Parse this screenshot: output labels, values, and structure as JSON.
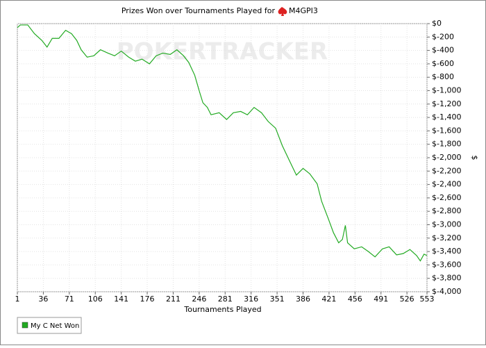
{
  "chart_data": {
    "type": "line",
    "title": "Prizes Won over Tournaments Played for",
    "player": "M4GPI3",
    "watermark": "POKERTRACKER",
    "x_label": "Tournaments Played",
    "y_label": "$",
    "x": [
      1,
      5,
      15,
      24,
      34,
      41,
      48,
      57,
      66,
      74,
      81,
      87,
      95,
      104,
      113,
      123,
      132,
      141,
      151,
      160,
      169,
      179,
      188,
      197,
      207,
      216,
      225,
      232,
      240,
      246,
      251,
      257,
      262,
      273,
      283,
      292,
      302,
      311,
      320,
      330,
      339,
      349,
      358,
      367,
      377,
      386,
      395,
      405,
      411,
      420,
      427,
      434,
      439,
      443,
      446,
      455,
      465,
      474,
      483,
      493,
      502,
      512,
      521,
      530,
      539,
      544,
      549,
      553
    ],
    "series": [
      {
        "name": "My C Net Won",
        "color": "#22aa22",
        "values": [
          -60,
          -20,
          -20,
          -150,
          -250,
          -350,
          -220,
          -220,
          -100,
          -150,
          -250,
          -390,
          -500,
          -480,
          -390,
          -440,
          -480,
          -410,
          -500,
          -560,
          -530,
          -600,
          -480,
          -440,
          -460,
          -390,
          -480,
          -580,
          -770,
          -1000,
          -1180,
          -1250,
          -1360,
          -1330,
          -1430,
          -1330,
          -1310,
          -1360,
          -1250,
          -1330,
          -1460,
          -1560,
          -1820,
          -2030,
          -2260,
          -2160,
          -2240,
          -2390,
          -2650,
          -2910,
          -3120,
          -3270,
          -3220,
          -3010,
          -3270,
          -3360,
          -3330,
          -3400,
          -3480,
          -3360,
          -3330,
          -3450,
          -3430,
          -3370,
          -3460,
          -3540,
          -3440,
          -3460
        ]
      }
    ],
    "xlim": [
      1,
      553
    ],
    "xticks": [
      1,
      36,
      71,
      106,
      141,
      176,
      211,
      246,
      281,
      316,
      351,
      386,
      421,
      456,
      491,
      526,
      553
    ],
    "ylim": [
      -4000,
      0
    ],
    "yticks": [
      {
        "value": 0,
        "label": "$0"
      },
      {
        "value": -200,
        "label": "$-200"
      },
      {
        "value": -400,
        "label": "$-400"
      },
      {
        "value": -600,
        "label": "$-600"
      },
      {
        "value": -800,
        "label": "$-800"
      },
      {
        "value": -1000,
        "label": "$-1,000"
      },
      {
        "value": -1200,
        "label": "$-1,200"
      },
      {
        "value": -1400,
        "label": "$-1,400"
      },
      {
        "value": -1600,
        "label": "$-1,600"
      },
      {
        "value": -1800,
        "label": "$-1,800"
      },
      {
        "value": -2000,
        "label": "$-2,000"
      },
      {
        "value": -2200,
        "label": "$-2,200"
      },
      {
        "value": -2400,
        "label": "$-2,400"
      },
      {
        "value": -2600,
        "label": "$-2,600"
      },
      {
        "value": -2800,
        "label": "$-2,800"
      },
      {
        "value": -3000,
        "label": "$-3,000"
      },
      {
        "value": -3200,
        "label": "$-3,200"
      },
      {
        "value": -3400,
        "label": "$-3,400"
      },
      {
        "value": -3600,
        "label": "$-3,600"
      },
      {
        "value": -3800,
        "label": "$-3,800"
      },
      {
        "value": -4000,
        "label": "$-4,000"
      }
    ],
    "grid": true
  }
}
